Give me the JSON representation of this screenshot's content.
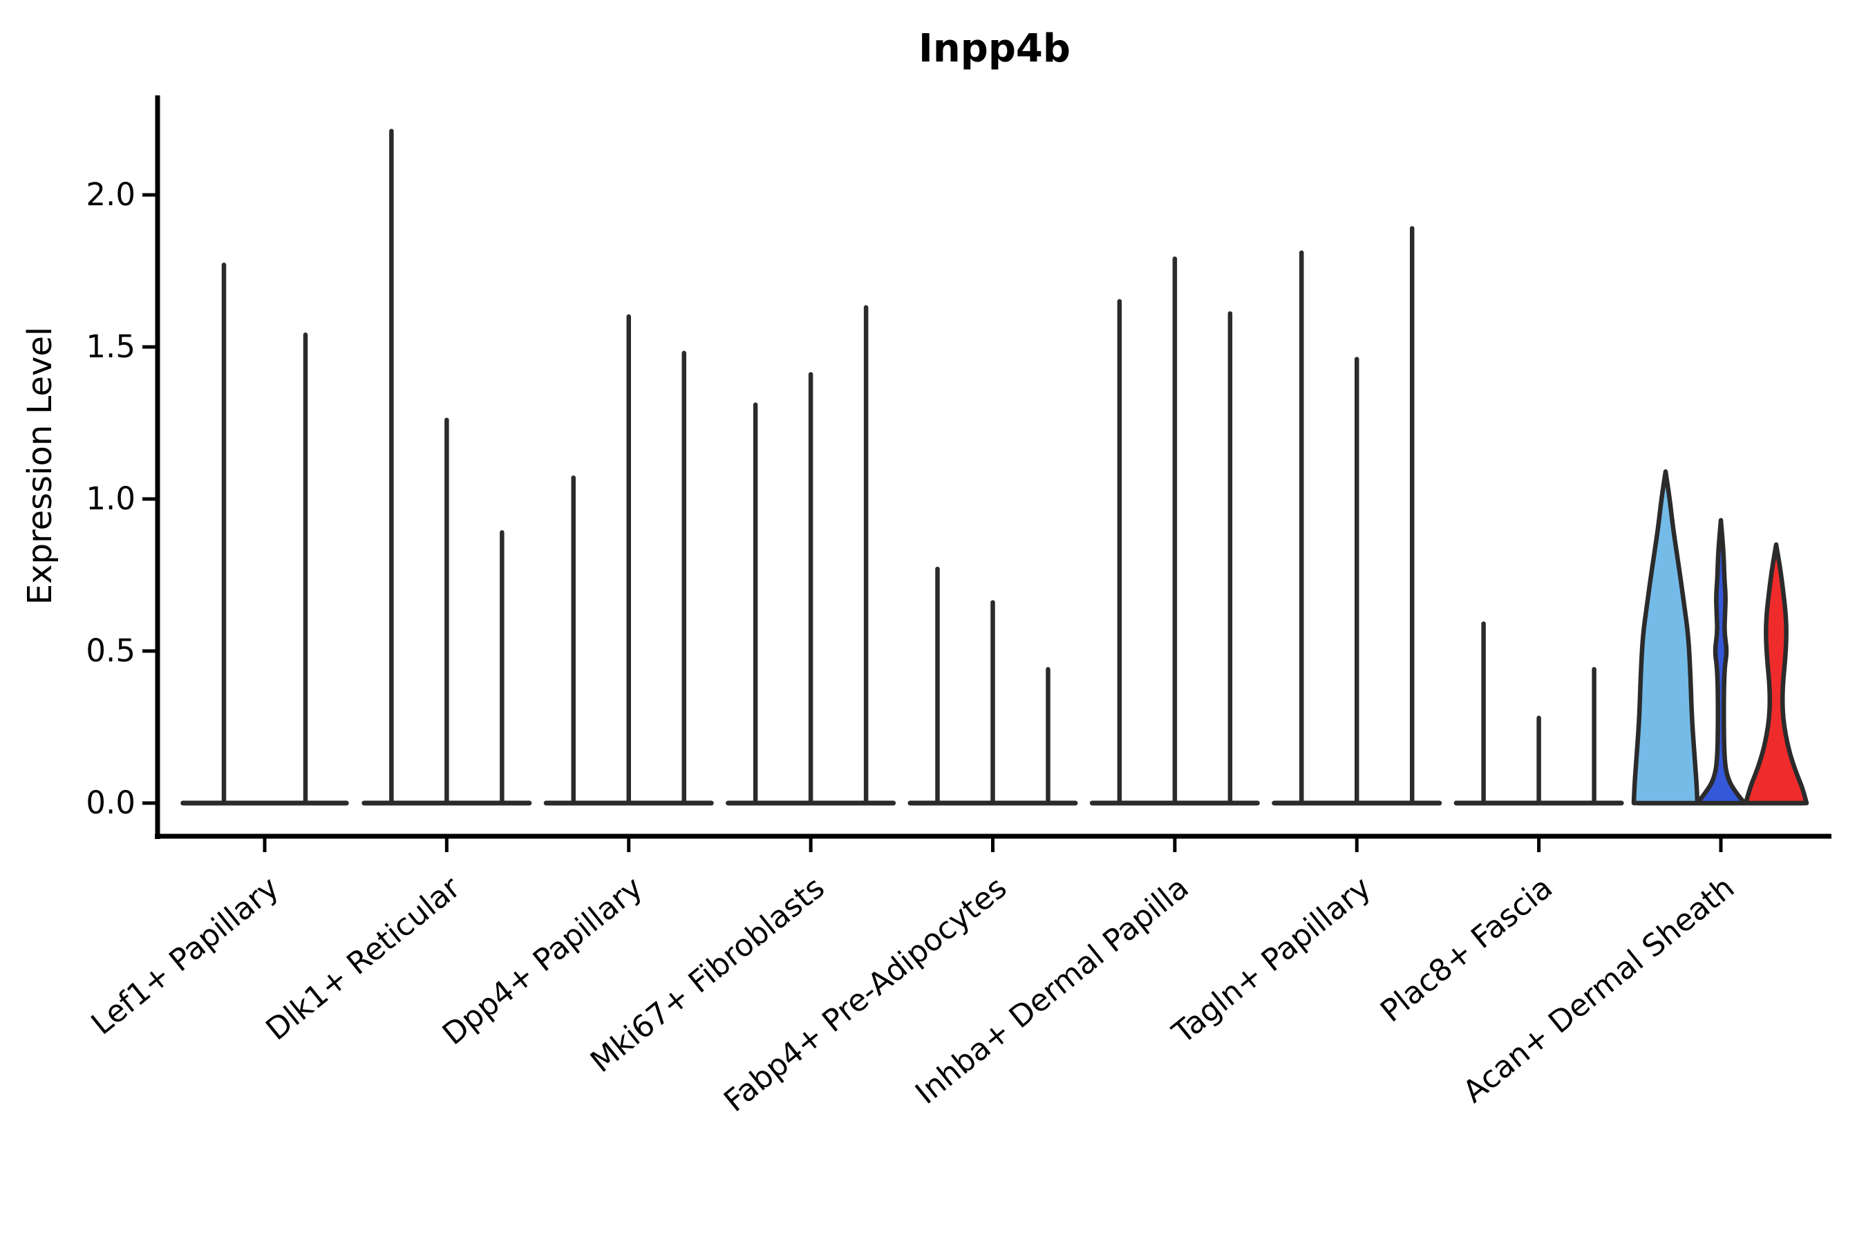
{
  "title": "Inpp4b",
  "axes": {
    "y_label": "Expression Level",
    "y_tick_labels": [
      "0.0",
      "0.5",
      "1.0",
      "1.5",
      "2.0"
    ],
    "y_ticks": [
      0.0,
      0.5,
      1.0,
      1.5,
      2.0
    ]
  },
  "colors": {
    "spine": "#000000",
    "violin_outline": "#2b2b2b",
    "lightblue_fill": "#74BBE8",
    "blue_fill": "#3558D9",
    "red_fill": "#F02B2B"
  },
  "chart_data": {
    "type": "violin",
    "title": "Inpp4b",
    "ylabel": "Expression Level",
    "ylim": [
      0,
      2.33
    ],
    "yticks": [
      0.0,
      0.5,
      1.0,
      1.5,
      2.0
    ],
    "grid": false,
    "legend": "none",
    "categories": [
      "Lef1+ Papillary",
      "Dlk1+ Reticular",
      "Dpp4+ Papillary",
      "Mki67+ Fibroblasts",
      "Fabp4+ Pre-Adipocytes",
      "Inhba+ Dermal Papilla",
      "Tagln+ Papillary",
      "Plac8+ Fascia",
      "Acan+ Dermal Sheath"
    ],
    "groups": [
      {
        "category": "Lef1+ Papillary",
        "violins": [
          {
            "offset": -59,
            "peak": 1.77,
            "style": "needle"
          },
          {
            "offset": 59,
            "peak": 1.54,
            "style": "needle"
          }
        ]
      },
      {
        "category": "Dlk1+ Reticular",
        "violins": [
          {
            "offset": -80,
            "peak": 2.21,
            "style": "needle"
          },
          {
            "offset": 0,
            "peak": 1.26,
            "style": "needle"
          },
          {
            "offset": 80,
            "peak": 0.89,
            "style": "needle"
          }
        ]
      },
      {
        "category": "Dpp4+ Papillary",
        "violins": [
          {
            "offset": -80,
            "peak": 1.07,
            "style": "needle"
          },
          {
            "offset": 0,
            "peak": 1.6,
            "style": "needle"
          },
          {
            "offset": 80,
            "peak": 1.48,
            "style": "needle"
          }
        ]
      },
      {
        "category": "Mki67+ Fibroblasts",
        "violins": [
          {
            "offset": -80,
            "peak": 1.31,
            "style": "needle"
          },
          {
            "offset": 0,
            "peak": 1.41,
            "style": "needle"
          },
          {
            "offset": 80,
            "peak": 1.63,
            "style": "needle"
          }
        ]
      },
      {
        "category": "Fabp4+ Pre-Adipocytes",
        "violins": [
          {
            "offset": -80,
            "peak": 0.77,
            "style": "needle"
          },
          {
            "offset": 0,
            "peak": 0.66,
            "style": "needle"
          },
          {
            "offset": 80,
            "peak": 0.44,
            "style": "needle"
          }
        ]
      },
      {
        "category": "Inhba+ Dermal Papilla",
        "violins": [
          {
            "offset": -80,
            "peak": 1.65,
            "style": "needle"
          },
          {
            "offset": 0,
            "peak": 1.79,
            "style": "needle"
          },
          {
            "offset": 80,
            "peak": 1.61,
            "style": "needle"
          }
        ]
      },
      {
        "category": "Tagln+ Papillary",
        "violins": [
          {
            "offset": -80,
            "peak": 1.81,
            "style": "needle"
          },
          {
            "offset": 0,
            "peak": 1.46,
            "style": "needle"
          },
          {
            "offset": 80,
            "peak": 1.89,
            "style": "needle"
          }
        ]
      },
      {
        "category": "Plac8+ Fascia",
        "violins": [
          {
            "offset": -80,
            "peak": 0.59,
            "style": "needle"
          },
          {
            "offset": 0,
            "peak": 0.28,
            "style": "needle"
          },
          {
            "offset": 80,
            "peak": 0.44,
            "style": "needle"
          }
        ]
      },
      {
        "category": "Acan+ Dermal Sheath",
        "violins": [
          {
            "offset": -80,
            "peak": 1.09,
            "style": "filled",
            "fill": "#74BBE8",
            "profile": [
              [
                0,
                46
              ],
              [
                0.06,
                45
              ],
              [
                0.15,
                42
              ],
              [
                0.28,
                38
              ],
              [
                0.42,
                36
              ],
              [
                0.55,
                33
              ],
              [
                0.65,
                27
              ],
              [
                0.75,
                21
              ],
              [
                0.84,
                15
              ],
              [
                0.92,
                10
              ],
              [
                1.0,
                6
              ],
              [
                1.09,
                0
              ]
            ]
          },
          {
            "offset": 0,
            "peak": 0.93,
            "style": "filled",
            "fill": "#3558D9",
            "profile": [
              [
                0,
                34
              ],
              [
                0.04,
                20
              ],
              [
                0.08,
                10
              ],
              [
                0.14,
                5
              ],
              [
                0.3,
                4
              ],
              [
                0.44,
                5
              ],
              [
                0.5,
                9
              ],
              [
                0.56,
                5
              ],
              [
                0.62,
                6
              ],
              [
                0.68,
                7
              ],
              [
                0.74,
                5
              ],
              [
                0.82,
                4
              ],
              [
                0.93,
                0
              ]
            ]
          },
          {
            "offset": 80,
            "peak": 0.85,
            "style": "filled",
            "fill": "#F02B2B",
            "profile": [
              [
                0,
                44
              ],
              [
                0.05,
                38
              ],
              [
                0.1,
                29
              ],
              [
                0.16,
                20
              ],
              [
                0.22,
                14
              ],
              [
                0.28,
                10
              ],
              [
                0.34,
                9
              ],
              [
                0.4,
                10
              ],
              [
                0.47,
                13
              ],
              [
                0.55,
                15
              ],
              [
                0.62,
                14
              ],
              [
                0.7,
                10
              ],
              [
                0.77,
                6
              ],
              [
                0.85,
                0
              ]
            ]
          }
        ]
      }
    ]
  }
}
